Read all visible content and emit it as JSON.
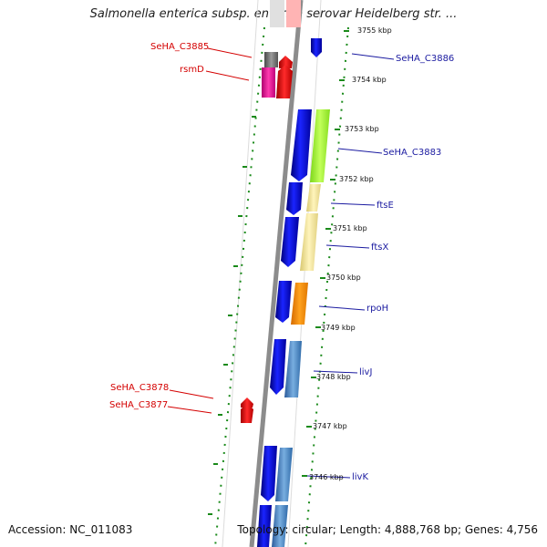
{
  "title": "Salmonella enterica subsp. enterica serovar Heidelberg str. ...",
  "footer": {
    "accession": "Accession: NC_011083",
    "topology": "Topology: circular; Length: 4,888,768 bp; Genes: 4,756"
  },
  "ticks": [
    {
      "label": "3755 kbp"
    },
    {
      "label": "3754 kbp"
    },
    {
      "label": "3753 kbp"
    },
    {
      "label": "3752 kbp"
    },
    {
      "label": "3751 kbp"
    },
    {
      "label": "3750 kbp"
    },
    {
      "label": "3749 kbp"
    },
    {
      "label": "3748 kbp"
    },
    {
      "label": "3747 kbp"
    },
    {
      "label": "3746 kbp"
    }
  ],
  "gene_labels_left": [
    {
      "label": "SeHA_C3885"
    },
    {
      "label": "rsmD"
    },
    {
      "label": "SeHA_C3878"
    },
    {
      "label": "SeHA_C3877"
    }
  ],
  "gene_labels_right": [
    {
      "label": "SeHA_C3886"
    },
    {
      "label": "SeHA_C3883"
    },
    {
      "label": "ftsE"
    },
    {
      "label": "ftsX"
    },
    {
      "label": "rpoH"
    },
    {
      "label": "livJ"
    },
    {
      "label": "livK"
    }
  ],
  "colors": {
    "red_label": "#d40000",
    "blue_label": "#1a1aa0",
    "gene_blue": "#0a14e6",
    "gene_red": "#e8101a",
    "gene_magenta": "#f01b9a",
    "gene_green": "#a6ef2e",
    "gene_tan": "#f0e39a",
    "gene_orange": "#ff8c00",
    "gene_steel": "#4a8ad0",
    "tick_green": "#1a8a1a",
    "backbone": "#8c8c8c"
  }
}
